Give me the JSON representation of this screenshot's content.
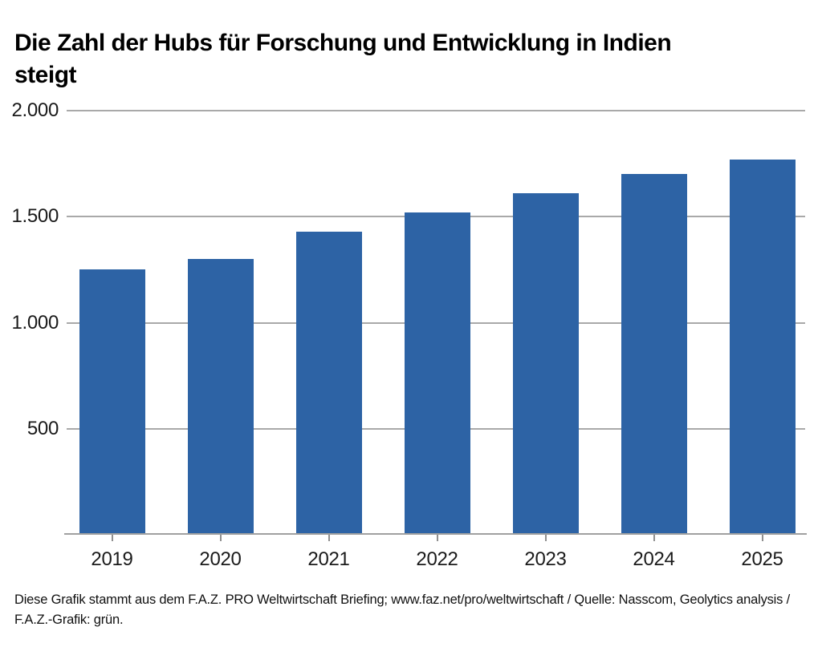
{
  "title": {
    "line1": "Die Zahl der Hubs für Forschung und Entwicklung in Indien",
    "line2": "steigt"
  },
  "footer": {
    "text": "Diese Grafik stammt aus dem F.A.Z. PRO Weltwirtschaft Briefing; www.faz.net/pro/weltwirtschaft / Quelle: Nasscom, Geolytics analysis / F.A.Z.-Grafik: grün."
  },
  "chart_data": {
    "type": "bar",
    "title": "Die Zahl der Hubs für Forschung und Entwicklung in Indien steigt",
    "categories": [
      "2019",
      "2020",
      "2021",
      "2022",
      "2023",
      "2024",
      "2025"
    ],
    "values": [
      1250,
      1300,
      1430,
      1520,
      1610,
      1700,
      1770
    ],
    "xlabel": "",
    "ylabel": "",
    "ylim": [
      0,
      2000
    ],
    "y_ticks": [
      {
        "value": 500,
        "label": "500"
      },
      {
        "value": 1000,
        "label": "1.000"
      },
      {
        "value": 1500,
        "label": "1.500"
      },
      {
        "value": 2000,
        "label": "2.000"
      }
    ],
    "grid": true,
    "legend_position": "none",
    "colors": {
      "bar": "#2d63a5",
      "gridline": "#a9a9a9",
      "axis_line": "#a0a0a0",
      "tick": "#8f8f8f",
      "label_text": "#1a1a1a"
    }
  }
}
